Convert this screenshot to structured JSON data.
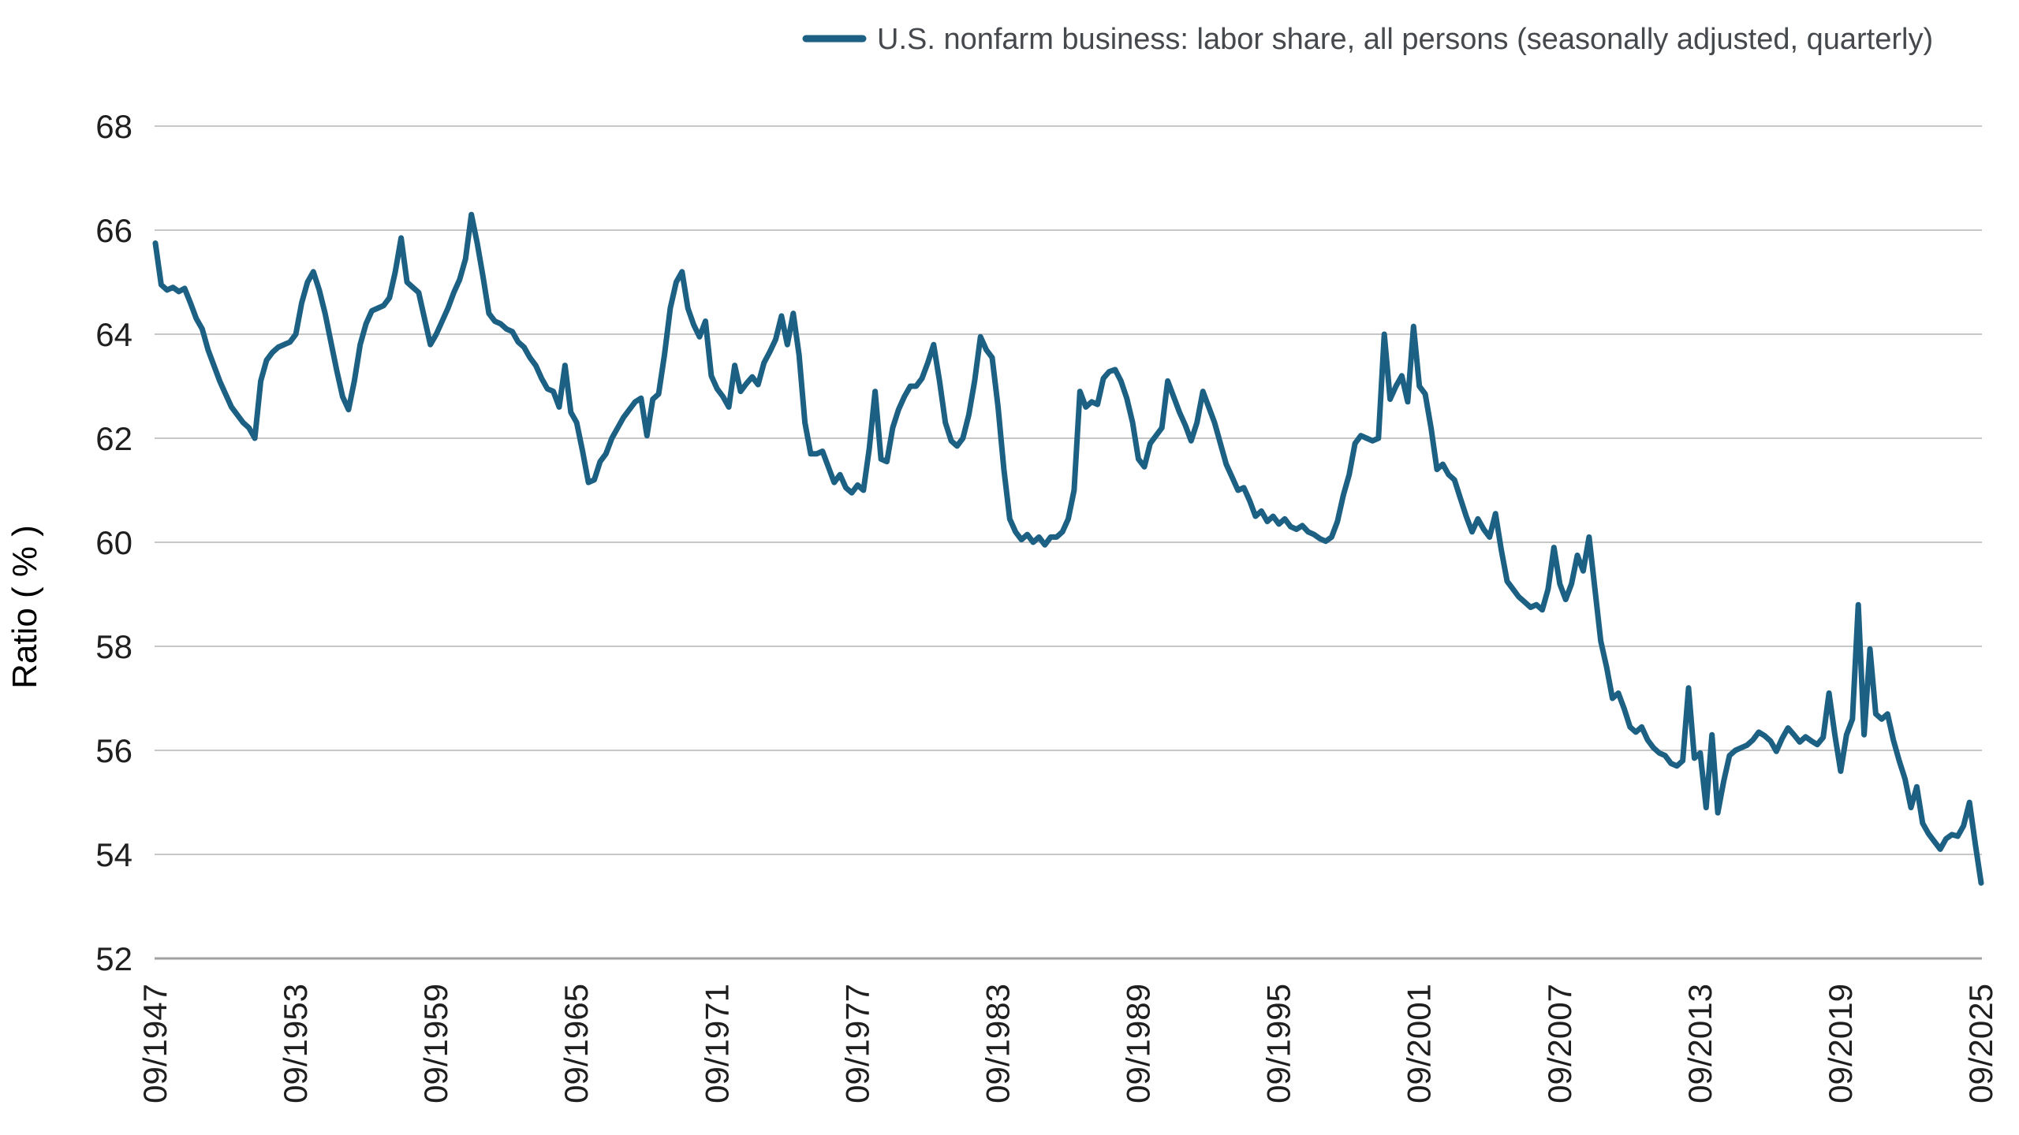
{
  "chart_data": {
    "type": "line",
    "title": "",
    "xlabel": "",
    "ylabel": "Ratio ( % )",
    "ylim": [
      52,
      68
    ],
    "y_ticks": [
      68,
      66,
      64,
      62,
      60,
      58,
      56,
      54,
      52
    ],
    "grid": "horizontal",
    "legend_position": "top-right",
    "frequency": "quarterly",
    "x_start_label": "09/1947",
    "x_end_label": "09/2025",
    "x_tick_every_n_points": 24,
    "x_tick_labels": [
      "09/1947",
      "09/1953",
      "09/1959",
      "09/1965",
      "09/1971",
      "09/1977",
      "09/1983",
      "09/1989",
      "09/1995",
      "09/2001",
      "09/2007",
      "09/2013",
      "09/2019",
      "09/2025"
    ],
    "series": [
      {
        "name": "U.S. nonfarm business: labor share, all persons (seasonally adjusted, quarterly)",
        "start": "1947-Q3",
        "end": "2025-Q3",
        "values": [
          65.75,
          64.95,
          64.85,
          64.9,
          64.82,
          64.88,
          64.6,
          64.3,
          64.1,
          63.7,
          63.4,
          63.1,
          62.85,
          62.6,
          62.45,
          62.3,
          62.2,
          62.0,
          63.1,
          63.5,
          63.65,
          63.75,
          63.8,
          63.85,
          64.0,
          64.6,
          65.0,
          65.2,
          64.85,
          64.4,
          63.85,
          63.3,
          62.8,
          62.55,
          63.1,
          63.8,
          64.2,
          64.45,
          64.5,
          64.55,
          64.7,
          65.2,
          65.85,
          65.0,
          64.9,
          64.8,
          64.3,
          63.8,
          64.0,
          64.25,
          64.5,
          64.8,
          65.05,
          65.45,
          66.3,
          65.75,
          65.1,
          64.4,
          64.25,
          64.2,
          64.1,
          64.05,
          63.85,
          63.75,
          63.55,
          63.4,
          63.15,
          62.95,
          62.9,
          62.6,
          63.4,
          62.5,
          62.3,
          61.75,
          61.15,
          61.2,
          61.55,
          61.7,
          62.0,
          62.2,
          62.4,
          62.55,
          62.7,
          62.77,
          62.05,
          62.75,
          62.85,
          63.6,
          64.5,
          65.0,
          65.2,
          64.5,
          64.18,
          63.95,
          64.25,
          63.2,
          62.95,
          62.8,
          62.6,
          63.4,
          62.9,
          63.05,
          63.18,
          63.03,
          63.45,
          63.66,
          63.9,
          64.35,
          63.8,
          64.4,
          63.6,
          62.3,
          61.7,
          61.7,
          61.75,
          61.45,
          61.15,
          61.3,
          61.05,
          60.95,
          61.1,
          61.0,
          61.8,
          62.9,
          61.6,
          61.55,
          62.2,
          62.55,
          62.8,
          63.0,
          63.0,
          63.15,
          63.45,
          63.8,
          63.1,
          62.3,
          61.95,
          61.85,
          62.0,
          62.45,
          63.1,
          63.95,
          63.7,
          63.55,
          62.6,
          61.4,
          60.45,
          60.2,
          60.05,
          60.15,
          60.0,
          60.1,
          59.95,
          60.1,
          60.1,
          60.2,
          60.45,
          61.0,
          62.9,
          62.6,
          62.7,
          62.65,
          63.15,
          63.28,
          63.32,
          63.1,
          62.77,
          62.3,
          61.6,
          61.45,
          61.9,
          62.05,
          62.2,
          63.1,
          62.8,
          62.5,
          62.25,
          61.95,
          62.3,
          62.9,
          62.6,
          62.3,
          61.9,
          61.5,
          61.25,
          61.0,
          61.05,
          60.8,
          60.5,
          60.6,
          60.4,
          60.5,
          60.35,
          60.45,
          60.3,
          60.25,
          60.32,
          60.2,
          60.15,
          60.07,
          60.02,
          60.1,
          60.4,
          60.9,
          61.3,
          61.9,
          62.05,
          62.0,
          61.95,
          62.0,
          64.0,
          62.75,
          63.0,
          63.2,
          62.7,
          64.15,
          63.0,
          62.85,
          62.2,
          61.4,
          61.5,
          61.3,
          61.2,
          60.85,
          60.5,
          60.2,
          60.45,
          60.25,
          60.1,
          60.55,
          59.85,
          59.25,
          59.1,
          58.95,
          58.85,
          58.75,
          58.8,
          58.7,
          59.1,
          59.9,
          59.2,
          58.9,
          59.2,
          59.75,
          59.45,
          60.1,
          59.1,
          58.1,
          57.6,
          57.0,
          57.1,
          56.8,
          56.45,
          56.35,
          56.45,
          56.2,
          56.05,
          55.95,
          55.9,
          55.75,
          55.7,
          55.8,
          57.2,
          55.85,
          55.95,
          54.9,
          56.3,
          54.8,
          55.4,
          55.9,
          56.0,
          56.05,
          56.1,
          56.2,
          56.35,
          56.28,
          56.18,
          55.98,
          56.23,
          56.43,
          56.3,
          56.16,
          56.26,
          56.18,
          56.11,
          56.25,
          57.1,
          56.3,
          55.6,
          56.3,
          56.6,
          58.8,
          56.3,
          57.95,
          56.7,
          56.6,
          56.7,
          56.2,
          55.8,
          55.45,
          54.9,
          55.3,
          54.6,
          54.4,
          54.25,
          54.1,
          54.3,
          54.38,
          54.35,
          54.55,
          55.0,
          54.2,
          53.45
        ]
      }
    ],
    "colors": {
      "line": "#1c6083",
      "gridline": "#c7c7c7",
      "baseline": "#a0a0a0",
      "tick_text": "#1f1f1f",
      "axis_title_text": "#000000",
      "legend_text": "#45484c",
      "background": "#ffffff"
    }
  }
}
